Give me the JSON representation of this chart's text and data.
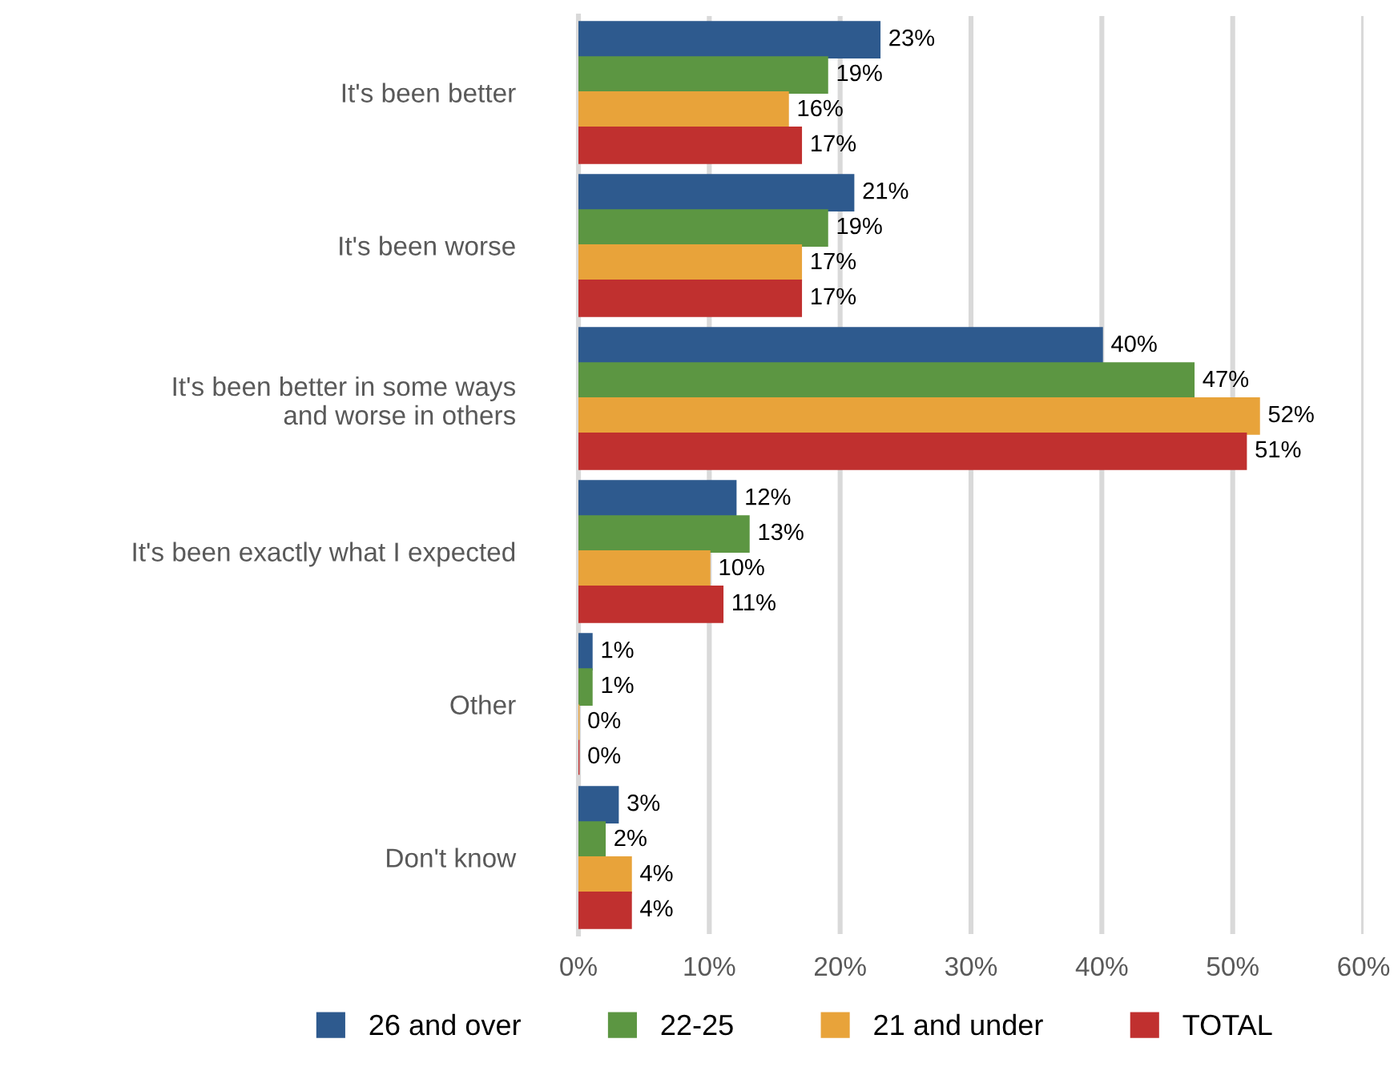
{
  "chart_data": {
    "type": "bar",
    "orientation": "horizontal",
    "categories": [
      "It's been better",
      "It's been worse",
      "It's been better in some ways\nand worse in others",
      "It's been exactly what I expected",
      "Other",
      "Don't know"
    ],
    "series": [
      {
        "name": "26 and over",
        "color": "#2e5a8e",
        "values": [
          23,
          21,
          40,
          12,
          1,
          3
        ],
        "value_labels": [
          "23%",
          "21%",
          "40%",
          "12%",
          "1%",
          "3%"
        ]
      },
      {
        "name": "22-25",
        "color": "#5c9642",
        "values": [
          19,
          19,
          47,
          13,
          1,
          2
        ],
        "value_labels": [
          "19%",
          "19%",
          "47%",
          "13%",
          "1%",
          "2%"
        ]
      },
      {
        "name": "21 and under",
        "color": "#e8a33a",
        "values": [
          16,
          17,
          52,
          10,
          0,
          4
        ],
        "value_labels": [
          "16%",
          "17%",
          "52%",
          "10%",
          "0%",
          "4%"
        ]
      },
      {
        "name": "TOTAL",
        "color": "#c0302f",
        "values": [
          17,
          17,
          51,
          11,
          0,
          4
        ],
        "value_labels": [
          "17%",
          "17%",
          "51%",
          "11%",
          "0%",
          "4%"
        ]
      }
    ],
    "xlim": [
      0,
      60
    ],
    "xticks": [
      {
        "value": 0,
        "label": "0%"
      },
      {
        "value": 10,
        "label": "10%"
      },
      {
        "value": 20,
        "label": "20%"
      },
      {
        "value": 30,
        "label": "30%"
      },
      {
        "value": 40,
        "label": "40%"
      },
      {
        "value": 50,
        "label": "50%"
      },
      {
        "value": 60,
        "label": "60%"
      }
    ],
    "grid": "x",
    "legend": "bottom"
  }
}
